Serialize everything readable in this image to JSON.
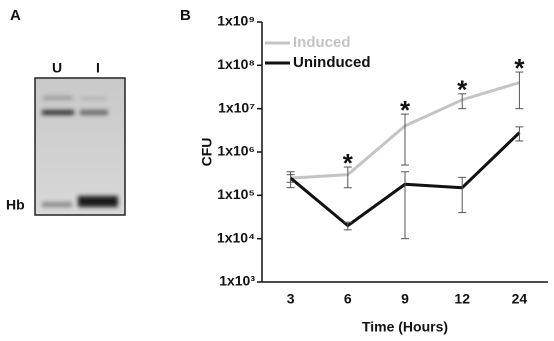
{
  "panels": [
    "A",
    "B"
  ],
  "gel": {
    "lanes": [
      "U",
      "I"
    ],
    "band_label": "Hb"
  },
  "chart_data": {
    "type": "line",
    "x_label": "Time (Hours)",
    "y_label": "CFU",
    "categories": [
      "3",
      "6",
      "9",
      "12",
      "24"
    ],
    "ylim": [
      1000,
      1000000000
    ],
    "log_scale": true,
    "yticks": [
      {
        "value": 1000,
        "label": "1x10³"
      },
      {
        "value": 10000,
        "label": "1x10⁴"
      },
      {
        "value": 100000,
        "label": "1x10⁵"
      },
      {
        "value": 1000000,
        "label": "1x10⁶"
      },
      {
        "value": 10000000,
        "label": "1x10⁷"
      },
      {
        "value": 100000000,
        "label": "1x10⁸"
      },
      {
        "value": 1000000000,
        "label": "1x10⁹"
      }
    ],
    "legend": "upper left",
    "series": [
      {
        "name": "Induced",
        "color": "#c4c4c4",
        "values": [
          250000,
          300000,
          4000000,
          16000000,
          40000000
        ],
        "errors": [
          100000,
          150000,
          3500000,
          6000000,
          30000000
        ],
        "significance": [
          null,
          "*",
          "*",
          "*",
          "*"
        ]
      },
      {
        "name": "Uninduced",
        "color": "#111111",
        "values": [
          250000,
          20000,
          180000,
          150000,
          2800000
        ],
        "errors": [
          50000,
          4000,
          170000,
          110000,
          1000000
        ]
      }
    ]
  }
}
